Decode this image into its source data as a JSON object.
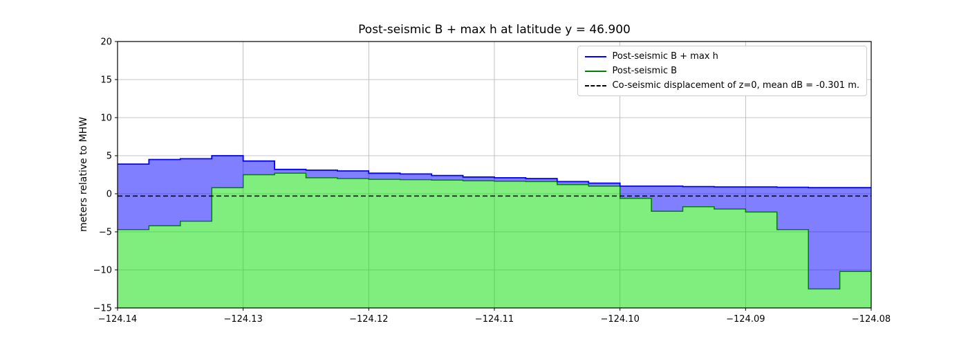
{
  "figure": {
    "background": "#ffffff",
    "plot_border_color": "#000000",
    "grid_color": "#b0b0b0"
  },
  "chart_data": {
    "type": "area",
    "title": "Post-seismic B + max h at latitude y = 46.900",
    "xlabel": "",
    "ylabel": "meters relative to MHW",
    "xlim": [
      -124.14,
      -124.08
    ],
    "ylim": [
      -15,
      20
    ],
    "grid": true,
    "legend_position": "upper right",
    "xticks": [
      -124.14,
      -124.13,
      -124.12,
      -124.11,
      -124.1,
      -124.09,
      -124.08
    ],
    "xtick_labels": [
      "−124.14",
      "−124.13",
      "−124.12",
      "−124.11",
      "−124.10",
      "−124.09",
      "−124.08"
    ],
    "yticks": [
      -15,
      -10,
      -5,
      0,
      5,
      10,
      15,
      20
    ],
    "ytick_labels": [
      "−15",
      "−10",
      "−5",
      "0",
      "5",
      "10",
      "15",
      "20"
    ],
    "x_edges": [
      -124.14,
      -124.1375,
      -124.135,
      -124.1325,
      -124.13,
      -124.1275,
      -124.125,
      -124.1225,
      -124.12,
      -124.1175,
      -124.115,
      -124.1125,
      -124.11,
      -124.1075,
      -124.105,
      -124.1025,
      -124.1,
      -124.0975,
      -124.095,
      -124.0925,
      -124.09,
      -124.0875,
      -124.085,
      -124.0825,
      -124.08
    ],
    "series": [
      {
        "name": "Post-seismic B + max h",
        "type": "step",
        "color": "#0000ff",
        "fill_color": "#0000ff",
        "fill_opacity": 0.5,
        "fill_to": "next",
        "values": [
          3.9,
          4.5,
          4.6,
          5.0,
          4.3,
          3.2,
          3.1,
          3.0,
          2.7,
          2.6,
          2.4,
          2.2,
          2.1,
          2.0,
          1.6,
          1.4,
          1.0,
          1.0,
          0.95,
          0.9,
          0.9,
          0.85,
          0.8,
          0.8
        ]
      },
      {
        "name": "Post-seismic B",
        "type": "step",
        "color": "#007f00",
        "fill_color": "#00dd00",
        "fill_opacity": 0.5,
        "fill_to": "bottom",
        "values": [
          -4.7,
          -4.2,
          -3.6,
          0.8,
          2.5,
          2.7,
          2.1,
          2.0,
          1.9,
          1.85,
          1.8,
          1.7,
          1.65,
          1.6,
          1.2,
          1.0,
          -0.6,
          -2.3,
          -1.7,
          -2.0,
          -2.4,
          -4.7,
          -12.5,
          -10.2
        ]
      },
      {
        "name": "Co-seismic displacement of z=0, mean dB = -0.301 m.",
        "type": "hline",
        "color": "#000000",
        "style": "dashed",
        "value": -0.301
      }
    ]
  }
}
